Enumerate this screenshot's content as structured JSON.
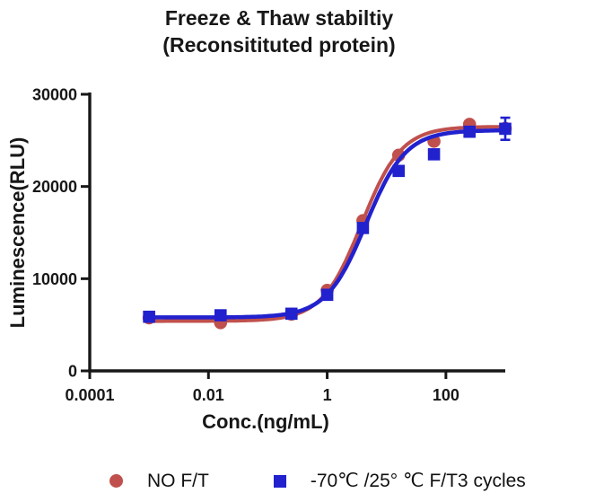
{
  "title": {
    "line1": "Freeze & Thaw stabiltiy",
    "line2": "(Reconsitituted protein)"
  },
  "colors": {
    "red_series": "#C0504D",
    "blue_series": "#2121CE",
    "axis": "#171717"
  },
  "chart_data": {
    "type": "line",
    "title": "Freeze & Thaw stabiltiy (Reconsitituted protein)",
    "xlabel": "Conc.(ng/mL)",
    "ylabel": "Luminescence(RLU)",
    "x_scale": "log",
    "xlim": [
      0.0001,
      1000
    ],
    "ylim": [
      0,
      30000
    ],
    "grid": false,
    "legend_position": "bottom",
    "x_ticks": [
      {
        "value": 0.0001,
        "label": "0.0001"
      },
      {
        "value": 0.01,
        "label": "0.01"
      },
      {
        "value": 1,
        "label": "1"
      },
      {
        "value": 100,
        "label": "100"
      }
    ],
    "y_ticks": [
      {
        "value": 0,
        "label": "0"
      },
      {
        "value": 10000,
        "label": "10000"
      },
      {
        "value": 20000,
        "label": "20000"
      },
      {
        "value": 30000,
        "label": "30000"
      }
    ],
    "x": [
      0.001,
      0.016,
      0.25,
      1,
      4,
      16,
      63,
      250,
      1000
    ],
    "series": [
      {
        "name": "NO F/T",
        "color": "#C0504D",
        "marker": "circle",
        "values": [
          5750,
          5230,
          6150,
          8740,
          16300,
          23400,
          24900,
          26750,
          26300
        ],
        "error": [
          0,
          0,
          0,
          0,
          0,
          0,
          0,
          0,
          0
        ],
        "fit": {
          "bottom": 5400,
          "top": 26500,
          "ec50": 3.8,
          "hill": 1.3
        }
      },
      {
        "name": "-70℃ /25° ℃ F/T3 cycles",
        "color": "#2121CE",
        "marker": "square",
        "values": [
          5870,
          6030,
          6200,
          8250,
          15500,
          21690,
          23490,
          25940,
          26260
        ],
        "error": [
          0,
          0,
          0,
          0,
          0,
          0,
          0,
          0,
          1200
        ],
        "fit": {
          "bottom": 5800,
          "top": 26100,
          "ec50": 4.5,
          "hill": 1.3
        }
      }
    ]
  },
  "legend": {
    "items": [
      {
        "label": "NO F/T",
        "marker": "circle",
        "color": "#C0504D"
      },
      {
        "label": "-70℃ /25° ℃ F/T3 cycles",
        "marker": "square",
        "color": "#2121CE"
      }
    ]
  }
}
